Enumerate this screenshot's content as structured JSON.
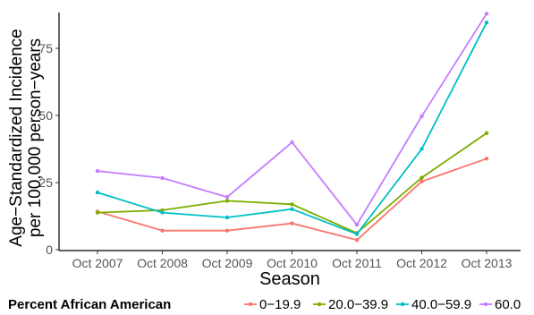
{
  "chart_data": {
    "type": "line",
    "xlabel": "Season",
    "ylabel_line1": "Age−Standardized Incidence",
    "ylabel_line2": "per 100,000 person−years",
    "categories": [
      "Oct 2007",
      "Oct 2008",
      "Oct 2009",
      "Oct 2010",
      "Oct 2011",
      "Oct 2012",
      "Oct 2013"
    ],
    "yticks": [
      0,
      25,
      50,
      75
    ],
    "ylim": [
      0,
      88
    ],
    "grid": false,
    "legend_position": "bottom",
    "legend_title": "Percent African American",
    "series": [
      {
        "name": "0−19.9",
        "color": "#f8766d",
        "values": [
          14.2,
          7.1,
          7.1,
          9.8,
          3.6,
          25.4,
          33.9
        ]
      },
      {
        "name": "20.0−39.9",
        "color": "#7cae00",
        "values": [
          13.8,
          14.7,
          18.2,
          16.9,
          6.2,
          26.8,
          43.4
        ]
      },
      {
        "name": "40.0−59.9",
        "color": "#00bfc4",
        "values": [
          21.3,
          13.8,
          12.0,
          15.1,
          5.8,
          37.5,
          84.6
        ]
      },
      {
        "name": "60.0",
        "color": "#c77cff",
        "values": [
          29.3,
          26.7,
          19.6,
          40.0,
          9.3,
          49.7,
          87.9
        ]
      }
    ]
  }
}
